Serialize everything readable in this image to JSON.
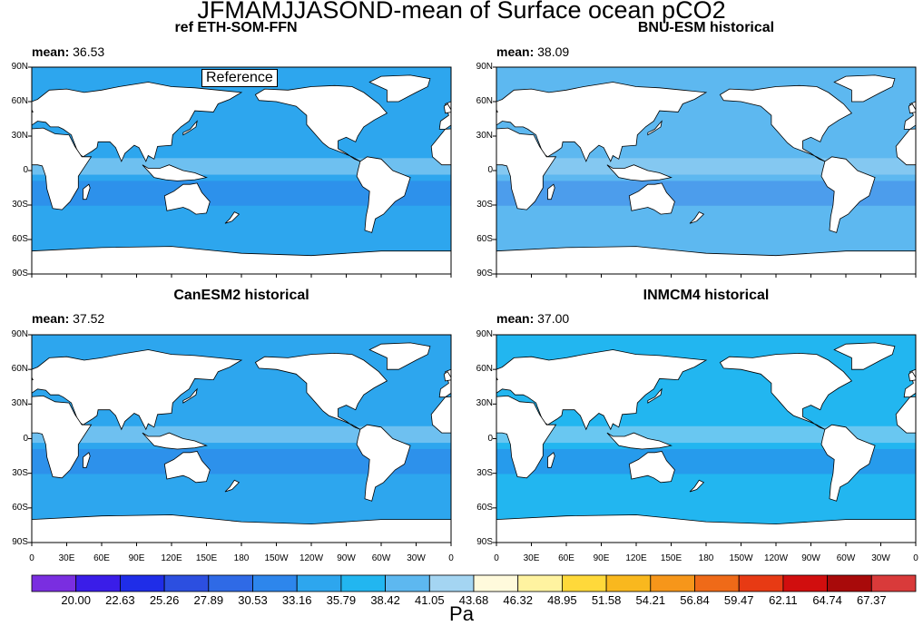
{
  "title": "JFMAMJJASOND-mean of Surface ocean pCO2",
  "units": "Pa",
  "reference_box": "Reference",
  "mean_prefix": "mean:",
  "panels": [
    {
      "title": "ref ETH-SOM-FFN",
      "mean": "36.53",
      "base_color": "#2da6ee"
    },
    {
      "title": "BNU-ESM historical",
      "mean": "38.09",
      "base_color": "#5db8f0"
    },
    {
      "title": "CanESM2 historical",
      "mean": "37.52",
      "base_color": "#2da6ee"
    },
    {
      "title": "INMCM4 historical",
      "mean": "37.00",
      "base_color": "#22b6f0"
    }
  ],
  "lat_ticks": [
    "90N",
    "60N",
    "30N",
    "0",
    "30S",
    "60S",
    "90S"
  ],
  "lon_ticks": [
    "0",
    "30E",
    "60E",
    "90E",
    "120E",
    "150E",
    "180",
    "150W",
    "120W",
    "90W",
    "60W",
    "30W",
    "0"
  ],
  "colorbar": {
    "labels": [
      "20.00",
      "22.63",
      "25.26",
      "27.89",
      "30.53",
      "33.16",
      "35.79",
      "38.42",
      "41.05",
      "43.68",
      "46.32",
      "48.95",
      "51.58",
      "54.21",
      "56.84",
      "59.47",
      "62.11",
      "64.74",
      "67.37"
    ],
    "colors": [
      "#7a2ee0",
      "#3a1de8",
      "#1f2de8",
      "#2c4fe0",
      "#2f6ae6",
      "#2d86ec",
      "#2da6ee",
      "#22b6f0",
      "#5db8f0",
      "#a4d5f2",
      "#fffadc",
      "#fff3a0",
      "#ffd93a",
      "#f9b81e",
      "#f6961a",
      "#ef6a18",
      "#e73a14",
      "#d10e0e",
      "#a80a0a",
      "#d93a3a"
    ]
  },
  "chart_data": {
    "type": "heatmap",
    "title": "JFMAMJJASOND-mean of Surface ocean pCO2",
    "variable": "Surface ocean pCO2",
    "units": "Pa",
    "panels": [
      {
        "name": "ref ETH-SOM-FFN",
        "mean": 36.53
      },
      {
        "name": "BNU-ESM historical",
        "mean": 38.09
      },
      {
        "name": "CanESM2 historical",
        "mean": 37.52
      },
      {
        "name": "INMCM4 historical",
        "mean": 37.0
      }
    ],
    "xlabel": "",
    "ylabel": "",
    "x_ticks": [
      "0",
      "30E",
      "60E",
      "90E",
      "120E",
      "150E",
      "180",
      "150W",
      "120W",
      "90W",
      "60W",
      "30W",
      "0"
    ],
    "y_ticks": [
      "90N",
      "60N",
      "30N",
      "0",
      "30S",
      "60S",
      "90S"
    ],
    "xlim": [
      0,
      360
    ],
    "ylim": [
      -90,
      90
    ],
    "colorbar_levels": [
      20.0,
      22.63,
      25.26,
      27.89,
      30.53,
      33.16,
      35.79,
      38.42,
      41.05,
      43.68,
      46.32,
      48.95,
      51.58,
      54.21,
      56.84,
      59.47,
      62.11,
      64.74,
      67.37
    ]
  }
}
